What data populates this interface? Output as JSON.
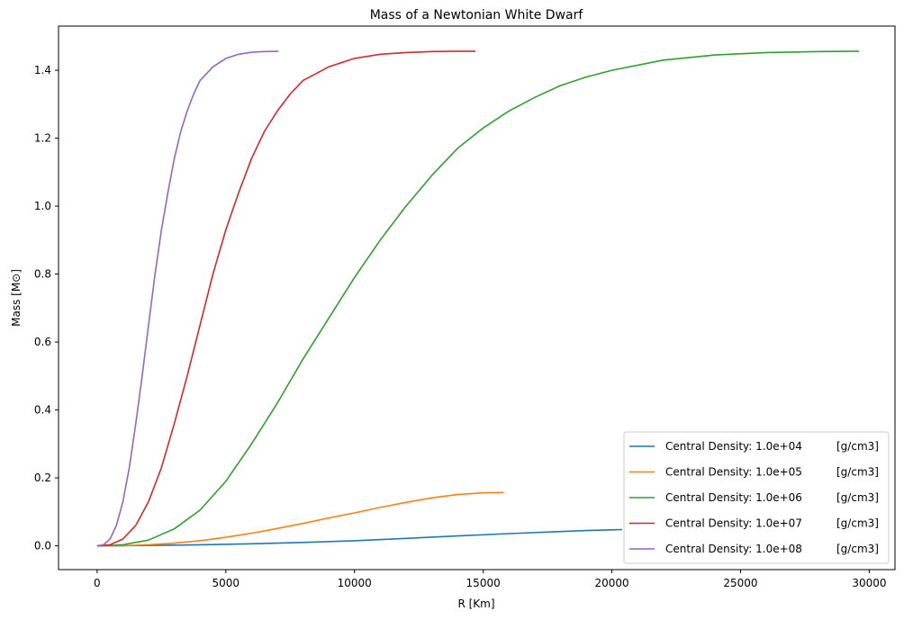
{
  "chart_data": {
    "type": "line",
    "title": "Mass of a Newtonian White Dwarf",
    "xlabel": "R [Km]",
    "ylabel": "Mass [M⊙]",
    "xlim": [
      -1500,
      31000
    ],
    "ylim": [
      -0.07,
      1.53
    ],
    "xticks": [
      0,
      5000,
      10000,
      15000,
      20000,
      25000,
      30000
    ],
    "yticks": [
      0.0,
      0.2,
      0.4,
      0.6,
      0.8,
      1.0,
      1.2,
      1.4
    ],
    "xtick_labels": [
      "0",
      "5000",
      "10000",
      "15000",
      "20000",
      "25000",
      "30000"
    ],
    "ytick_labels": [
      "0.0",
      "0.2",
      "0.4",
      "0.6",
      "0.8",
      "1.0",
      "1.2",
      "1.4"
    ],
    "grid": false,
    "legend_position": "lower-right",
    "legend_unit": "[g/cm3]",
    "series": [
      {
        "name": "Central Density: 1.0e+04",
        "color": "#1f77b4",
        "x": [
          0,
          2000,
          4000,
          6000,
          8000,
          10000,
          12000,
          14000,
          16000,
          18000,
          19000,
          20000,
          20400
        ],
        "y": [
          0,
          0.001,
          0.003,
          0.006,
          0.01,
          0.015,
          0.022,
          0.029,
          0.036,
          0.042,
          0.045,
          0.047,
          0.048
        ]
      },
      {
        "name": "Central Density: 1.0e+05",
        "color": "#ff7f0e",
        "x": [
          0,
          1000,
          2000,
          3000,
          4000,
          5000,
          6000,
          7000,
          8000,
          9000,
          10000,
          11000,
          12000,
          13000,
          14000,
          15000,
          15800
        ],
        "y": [
          0,
          0.0005,
          0.003,
          0.008,
          0.015,
          0.025,
          0.037,
          0.051,
          0.066,
          0.082,
          0.097,
          0.113,
          0.128,
          0.141,
          0.151,
          0.156,
          0.157
        ]
      },
      {
        "name": "Central Density: 1.0e+06",
        "color": "#2ca02c",
        "x": [
          0,
          1000,
          2000,
          3000,
          4000,
          5000,
          6000,
          7000,
          8000,
          9000,
          10000,
          11000,
          12000,
          13000,
          14000,
          15000,
          16000,
          17000,
          18000,
          19000,
          20000,
          22000,
          24000,
          26000,
          28000,
          29600
        ],
        "y": [
          0,
          0.003,
          0.017,
          0.05,
          0.105,
          0.19,
          0.3,
          0.42,
          0.55,
          0.67,
          0.79,
          0.9,
          1.0,
          1.09,
          1.17,
          1.23,
          1.28,
          1.32,
          1.355,
          1.38,
          1.4,
          1.43,
          1.445,
          1.452,
          1.455,
          1.456
        ]
      },
      {
        "name": "Central Density: 1.0e+07",
        "color": "#d62728",
        "x": [
          0,
          500,
          1000,
          1500,
          2000,
          2500,
          3000,
          3500,
          4000,
          4500,
          5000,
          5500,
          6000,
          6500,
          7000,
          7500,
          8000,
          8500,
          9000,
          10000,
          11000,
          12000,
          13000,
          14000,
          14700
        ],
        "y": [
          0,
          0.003,
          0.02,
          0.06,
          0.13,
          0.23,
          0.36,
          0.5,
          0.65,
          0.8,
          0.93,
          1.04,
          1.14,
          1.22,
          1.28,
          1.33,
          1.37,
          1.39,
          1.41,
          1.435,
          1.447,
          1.452,
          1.455,
          1.456,
          1.456
        ]
      },
      {
        "name": "Central Density: 1.0e+08",
        "color": "#9467bd",
        "x": [
          0,
          250,
          500,
          750,
          1000,
          1250,
          1500,
          1750,
          2000,
          2250,
          2500,
          2750,
          3000,
          3250,
          3500,
          3750,
          4000,
          4500,
          5000,
          5500,
          6000,
          6500,
          7050
        ],
        "y": [
          0,
          0.003,
          0.02,
          0.06,
          0.13,
          0.23,
          0.36,
          0.5,
          0.65,
          0.8,
          0.93,
          1.04,
          1.14,
          1.22,
          1.28,
          1.33,
          1.37,
          1.41,
          1.435,
          1.447,
          1.453,
          1.455,
          1.456
        ]
      }
    ]
  }
}
